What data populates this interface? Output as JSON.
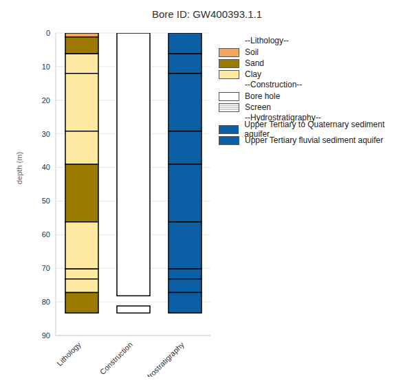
{
  "chart_data": {
    "type": "bar",
    "stacked": true,
    "title": "Bore ID: GW400393.1.1",
    "y_label": "depth (m)",
    "categories": [
      "Lithology",
      "Construction",
      "Hydrostratigraphy"
    ],
    "ylim": [
      0,
      90
    ],
    "yticks": [
      0,
      10,
      20,
      30,
      40,
      50,
      60,
      70,
      80,
      90
    ],
    "grid": true,
    "intervals": [
      [
        {
          "name": "Soil",
          "thickness": 1.2
        },
        {
          "name": "Sand",
          "thickness": 5
        },
        {
          "name": "Clay",
          "thickness": 5.8
        },
        {
          "name": "Clay",
          "thickness": 17.2
        },
        {
          "name": "Clay",
          "thickness": 9.8
        },
        {
          "name": "Sand",
          "thickness": 17.2
        },
        {
          "name": "Clay",
          "thickness": 14
        },
        {
          "name": "Clay",
          "thickness": 3
        },
        {
          "name": "Clay",
          "thickness": 4
        },
        {
          "name": "Sand",
          "thickness": 6.1
        }
      ],
      [
        {
          "name": "Bore hole",
          "thickness": 78.2
        },
        {
          "name": "Screen",
          "thickness": 3
        },
        {
          "name": "Bore hole",
          "thickness": 2.1
        }
      ],
      [
        {
          "name": "Upper Tertiary to Quaternary sediment aquifer",
          "thickness": 6.2
        },
        {
          "name": "Upper Tertiary to Quaternary sediment aquifer",
          "thickness": 5.8
        },
        {
          "name": "Upper Tertiary to Quaternary sediment aquifer",
          "thickness": 17.2
        },
        {
          "name": "Upper Tertiary to Quaternary sediment aquifer",
          "thickness": 9.8
        },
        {
          "name": "Upper Tertiary fluvial sediment aquifer",
          "thickness": 17.2
        },
        {
          "name": "Upper Tertiary fluvial sediment aquifer",
          "thickness": 14
        },
        {
          "name": "Upper Tertiary fluvial sediment aquifer",
          "thickness": 3
        },
        {
          "name": "Upper Tertiary fluvial sediment aquifer",
          "thickness": 4
        },
        {
          "name": "Upper Tertiary fluvial sediment aquifer",
          "thickness": 6.1
        }
      ]
    ],
    "legend_groups": [
      {
        "title": "--Lithology--",
        "items": [
          {
            "name": "Soil",
            "color": "#f4a55e"
          },
          {
            "name": "Sand",
            "color": "#9c7a00"
          },
          {
            "name": "Clay",
            "color": "#fde9a0"
          }
        ]
      },
      {
        "title": "--Construction--",
        "items": [
          {
            "name": "Bore hole",
            "color": "#ffffff"
          },
          {
            "name": "Screen",
            "color": "#ffffff",
            "line_style": "hatched"
          }
        ]
      },
      {
        "title": "--Hydrostratigraphy--",
        "items": [
          {
            "name": "Upper Tertiary to Quaternary sediment aquifer",
            "color": "#0b5fa5"
          },
          {
            "name": "Upper Tertiary fluvial sediment aquifer",
            "color": "#0b5fa5"
          }
        ]
      }
    ]
  }
}
